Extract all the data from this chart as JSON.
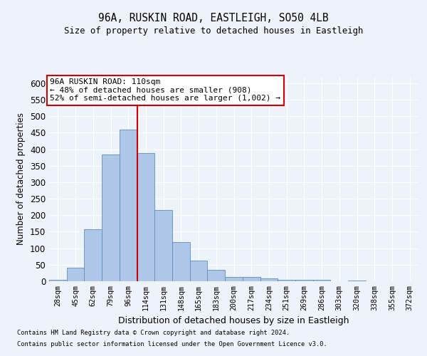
{
  "title1": "96A, RUSKIN ROAD, EASTLEIGH, SO50 4LB",
  "title2": "Size of property relative to detached houses in Eastleigh",
  "xlabel": "Distribution of detached houses by size in Eastleigh",
  "ylabel": "Number of detached properties",
  "categories": [
    "28sqm",
    "45sqm",
    "62sqm",
    "79sqm",
    "96sqm",
    "114sqm",
    "131sqm",
    "148sqm",
    "165sqm",
    "183sqm",
    "200sqm",
    "217sqm",
    "234sqm",
    "251sqm",
    "269sqm",
    "286sqm",
    "303sqm",
    "320sqm",
    "338sqm",
    "355sqm",
    "372sqm"
  ],
  "values": [
    4,
    40,
    158,
    383,
    460,
    388,
    215,
    118,
    62,
    35,
    14,
    14,
    9,
    4,
    4,
    4,
    0,
    2,
    0,
    0,
    0
  ],
  "bar_color": "#aec6e8",
  "bar_edge_color": "#5a8fc0",
  "annotation_text": "96A RUSKIN ROAD: 110sqm\n← 48% of detached houses are smaller (908)\n52% of semi-detached houses are larger (1,002) →",
  "annotation_box_color": "#ffffff",
  "annotation_box_edge": "#cc0000",
  "vline_color": "#cc0000",
  "footnote1": "Contains HM Land Registry data © Crown copyright and database right 2024.",
  "footnote2": "Contains public sector information licensed under the Open Government Licence v3.0.",
  "bg_color": "#eef2f9",
  "plot_bg_color": "#eef2f9",
  "grid_color": "#ffffff",
  "ylim": [
    0,
    620
  ],
  "yticks": [
    0,
    50,
    100,
    150,
    200,
    250,
    300,
    350,
    400,
    450,
    500,
    550,
    600
  ],
  "vline_x_index": 4.5
}
